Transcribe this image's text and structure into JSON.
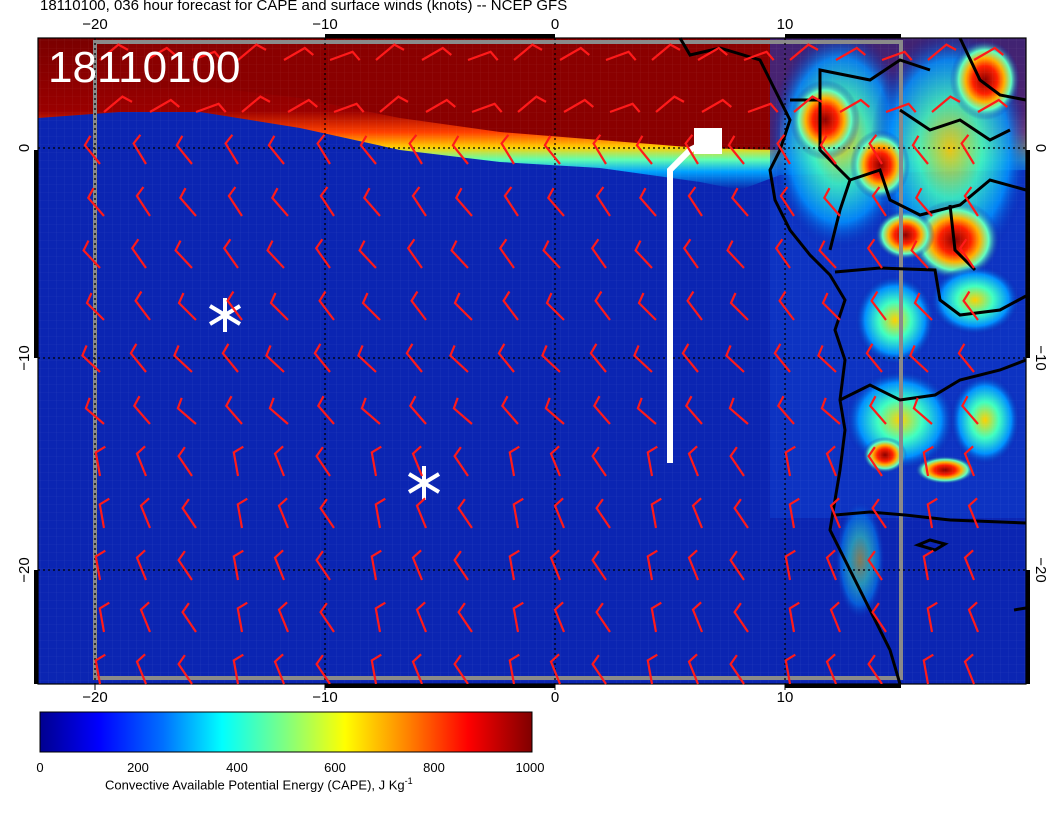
{
  "title": "18110100, 036 hour forecast for CAPE and surface winds (knots) -- NCEP GFS",
  "stamp": "18110100",
  "axes": {
    "top_lon_ticks": [
      "−20",
      "−10",
      "0",
      "10"
    ],
    "bottom_lon_ticks": [
      "−20",
      "−10",
      "0",
      "10"
    ],
    "left_lat_ticks": [
      "0",
      "−10",
      "−20"
    ],
    "right_lat_ticks": [
      "0",
      "−10",
      "−20"
    ]
  },
  "colorbar": {
    "ticks": [
      "0",
      "200",
      "400",
      "600",
      "800",
      "1000"
    ],
    "label_main": "Convective Available Potential Energy (CAPE), J Kg",
    "label_sup": "-1",
    "colors": [
      "#00008f",
      "#0000ff",
      "#0080ff",
      "#00ffff",
      "#80ff80",
      "#ffff00",
      "#ff8000",
      "#ff0000",
      "#800000"
    ]
  },
  "colors": {
    "barb": "#ff1a1a",
    "coast": "#000000",
    "track": "#ffffff",
    "ocean": "#0a1fa8"
  }
}
